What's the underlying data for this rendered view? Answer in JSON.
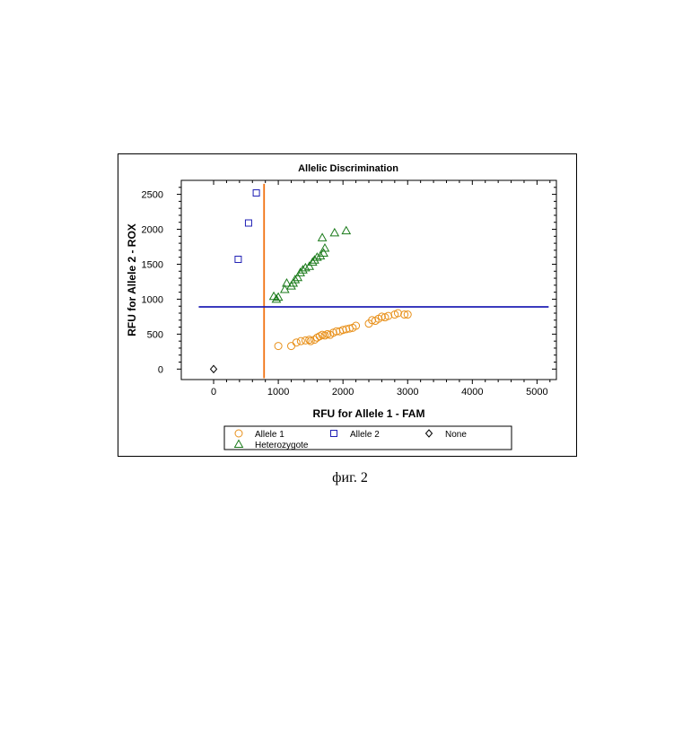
{
  "chart_data": {
    "type": "scatter",
    "title": "Allelic Discrimination",
    "xlabel": "RFU for Allele 1 - FAM",
    "ylabel": "RFU for Allele 2 - ROX",
    "xlim": [
      -500,
      5300
    ],
    "ylim": [
      -150,
      2700
    ],
    "xticks": [
      "0",
      "1000",
      "2000",
      "3000",
      "4000",
      "5000"
    ],
    "yticks": [
      "0",
      "500",
      "1000",
      "1500",
      "2000",
      "2500"
    ],
    "x_threshold": 780,
    "y_threshold": 890,
    "legend_position": "bottom",
    "series": [
      {
        "name": "Allele 1",
        "marker": "circle",
        "color": "#E8901A",
        "points": [
          [
            1000,
            330
          ],
          [
            1200,
            330
          ],
          [
            1280,
            380
          ],
          [
            1350,
            400
          ],
          [
            1420,
            410
          ],
          [
            1480,
            420
          ],
          [
            1500,
            400
          ],
          [
            1560,
            420
          ],
          [
            1600,
            450
          ],
          [
            1640,
            470
          ],
          [
            1680,
            490
          ],
          [
            1720,
            480
          ],
          [
            1760,
            500
          ],
          [
            1800,
            490
          ],
          [
            1850,
            520
          ],
          [
            1900,
            540
          ],
          [
            1950,
            540
          ],
          [
            2000,
            560
          ],
          [
            2050,
            570
          ],
          [
            2100,
            580
          ],
          [
            2150,
            590
          ],
          [
            2200,
            620
          ],
          [
            2400,
            650
          ],
          [
            2450,
            700
          ],
          [
            2500,
            690
          ],
          [
            2550,
            720
          ],
          [
            2600,
            750
          ],
          [
            2650,
            740
          ],
          [
            2700,
            760
          ],
          [
            2800,
            780
          ],
          [
            2850,
            800
          ],
          [
            2950,
            780
          ],
          [
            3000,
            780
          ]
        ]
      },
      {
        "name": "Allele 2",
        "marker": "square",
        "color": "#1F1FB4",
        "points": [
          [
            380,
            1570
          ],
          [
            540,
            2090
          ],
          [
            660,
            2520
          ]
        ]
      },
      {
        "name": "None",
        "marker": "diamond",
        "color": "#000000",
        "points": [
          [
            0,
            0
          ]
        ]
      },
      {
        "name": "Heterozygote",
        "marker": "triangle",
        "color": "#1A7A1A",
        "points": [
          [
            930,
            1040
          ],
          [
            970,
            1000
          ],
          [
            1000,
            1030
          ],
          [
            1100,
            1140
          ],
          [
            1130,
            1230
          ],
          [
            1200,
            1190
          ],
          [
            1230,
            1230
          ],
          [
            1260,
            1280
          ],
          [
            1300,
            1310
          ],
          [
            1340,
            1380
          ],
          [
            1380,
            1420
          ],
          [
            1420,
            1450
          ],
          [
            1480,
            1470
          ],
          [
            1530,
            1530
          ],
          [
            1560,
            1560
          ],
          [
            1600,
            1600
          ],
          [
            1650,
            1620
          ],
          [
            1700,
            1660
          ],
          [
            1720,
            1730
          ],
          [
            1680,
            1880
          ],
          [
            1870,
            1950
          ],
          [
            2050,
            1980
          ]
        ]
      }
    ]
  },
  "caption": "фиг. 2"
}
